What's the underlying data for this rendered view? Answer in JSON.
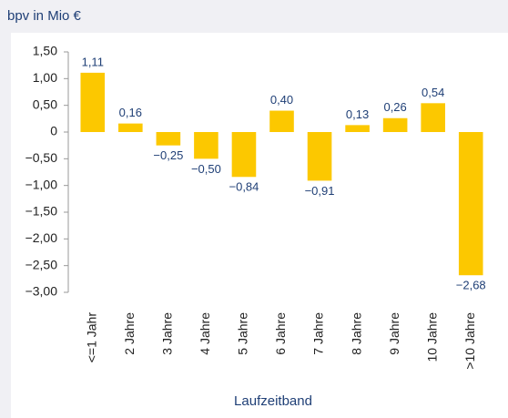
{
  "chart_data": {
    "type": "bar",
    "title": "bpv in Mio €",
    "x_label": "Laufzeitband",
    "categories": [
      "<=1 Jahr",
      "2 Jahre",
      "3 Jahre",
      "4 Jahre",
      "5 Jahre",
      "6 Jahre",
      "7 Jahre",
      "8 Jahre",
      "9 Jahre",
      "10 Jahre",
      ">10 Jahre"
    ],
    "values": [
      1.11,
      0.16,
      -0.25,
      -0.5,
      -0.84,
      0.4,
      -0.91,
      0.13,
      0.26,
      0.54,
      -2.68
    ],
    "value_labels": [
      "1,11",
      "0,16",
      "−0,25",
      "−0,50",
      "−0,84",
      "0,40",
      "−0,91",
      "0,13",
      "0,26",
      "0,54",
      "−2,68"
    ],
    "color": "#fcc800",
    "ylim": [
      -3.0,
      1.5
    ],
    "yticks": [
      {
        "value": 1.5,
        "label": "1,50"
      },
      {
        "value": 1.0,
        "label": "1,00"
      },
      {
        "value": 0.5,
        "label": "0,50"
      },
      0,
      {
        "value": -0.5,
        "label": "−0,50"
      },
      {
        "value": -1.0,
        "label": "−1,00"
      },
      {
        "value": -1.5,
        "label": "−1,50"
      },
      {
        "value": -2.0,
        "label": "−2,00"
      },
      {
        "value": -2.5,
        "label": "−2,50"
      },
      {
        "value": -3.0,
        "label": "−3,00"
      }
    ],
    "grid": false
  }
}
